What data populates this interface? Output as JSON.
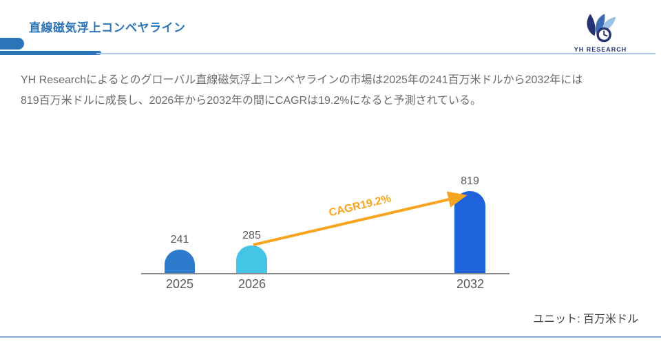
{
  "header": {
    "title": "直線磁気浮上コンベヤライン",
    "logo_brand": "YH RESEARCH"
  },
  "summary": {
    "line1": "YH Researchによるとのグローバル直線磁気浮上コンベヤラインの市場は2025年の241百万米ドルから2032年には",
    "line2": "819百万米ドルに成長し、2026年から2032年の間にCAGRは19.2%になると予測されている。"
  },
  "chart_data": {
    "type": "bar",
    "title": "",
    "xlabel": "",
    "ylabel": "",
    "categories": [
      "2025",
      "2026",
      "2032"
    ],
    "values": [
      241,
      285,
      819
    ],
    "ylim": [
      0,
      860
    ],
    "grid": false,
    "legend": false,
    "bar_colors": [
      "#2e7bce",
      "#45c5e6",
      "#1f63dc"
    ],
    "annotation": {
      "label": "CAGR19.2%",
      "from_category": "2026",
      "to_category": "2032",
      "color": "#f7a421"
    },
    "unit_label": "ユニット: 百万米ドル"
  },
  "colors": {
    "title-blue": "#2c74b8",
    "line-light": "#aac7e9",
    "orange": "#f7a421",
    "axis-gray": "#8a8a8a",
    "text-gray": "#6b6b6b",
    "label-gray": "#595959",
    "bottom-line": "#83a9d8",
    "logo-navy": "#243272",
    "logo-mid": "#3c6cb4",
    "logo-light": "#9cc2e5"
  }
}
